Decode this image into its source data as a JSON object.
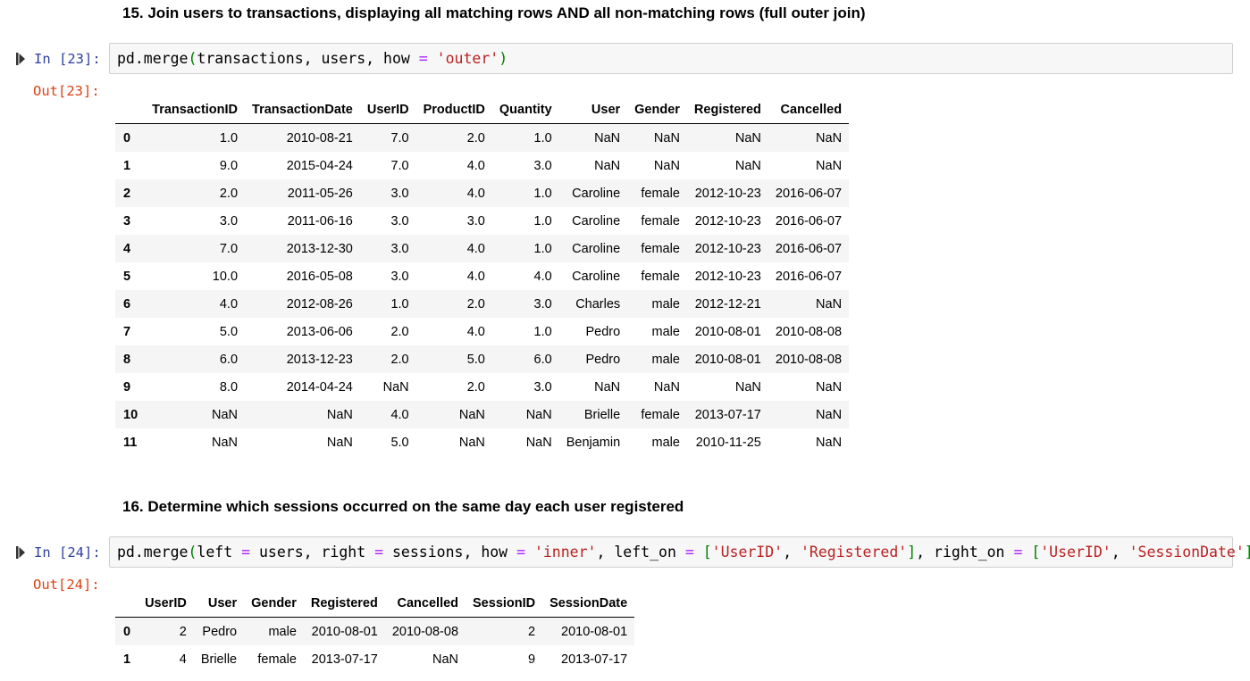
{
  "cells": [
    {
      "heading": "15. Join users to transactions, displaying all matching rows AND all non-matching rows (full outer join)",
      "in_prompt": "In [23]:",
      "out_prompt": "Out[23]:",
      "code": "pd.merge(transactions, users, how = 'outer')",
      "table": {
        "columns": [
          "",
          "TransactionID",
          "TransactionDate",
          "UserID",
          "ProductID",
          "Quantity",
          "User",
          "Gender",
          "Registered",
          "Cancelled"
        ],
        "rows": [
          [
            "0",
            "1.0",
            "2010-08-21",
            "7.0",
            "2.0",
            "1.0",
            "NaN",
            "NaN",
            "NaN",
            "NaN"
          ],
          [
            "1",
            "9.0",
            "2015-04-24",
            "7.0",
            "4.0",
            "3.0",
            "NaN",
            "NaN",
            "NaN",
            "NaN"
          ],
          [
            "2",
            "2.0",
            "2011-05-26",
            "3.0",
            "4.0",
            "1.0",
            "Caroline",
            "female",
            "2012-10-23",
            "2016-06-07"
          ],
          [
            "3",
            "3.0",
            "2011-06-16",
            "3.0",
            "3.0",
            "1.0",
            "Caroline",
            "female",
            "2012-10-23",
            "2016-06-07"
          ],
          [
            "4",
            "7.0",
            "2013-12-30",
            "3.0",
            "4.0",
            "1.0",
            "Caroline",
            "female",
            "2012-10-23",
            "2016-06-07"
          ],
          [
            "5",
            "10.0",
            "2016-05-08",
            "3.0",
            "4.0",
            "4.0",
            "Caroline",
            "female",
            "2012-10-23",
            "2016-06-07"
          ],
          [
            "6",
            "4.0",
            "2012-08-26",
            "1.0",
            "2.0",
            "3.0",
            "Charles",
            "male",
            "2012-12-21",
            "NaN"
          ],
          [
            "7",
            "5.0",
            "2013-06-06",
            "2.0",
            "4.0",
            "1.0",
            "Pedro",
            "male",
            "2010-08-01",
            "2010-08-08"
          ],
          [
            "8",
            "6.0",
            "2013-12-23",
            "2.0",
            "5.0",
            "6.0",
            "Pedro",
            "male",
            "2010-08-01",
            "2010-08-08"
          ],
          [
            "9",
            "8.0",
            "2014-04-24",
            "NaN",
            "2.0",
            "3.0",
            "NaN",
            "NaN",
            "NaN",
            "NaN"
          ],
          [
            "10",
            "NaN",
            "NaN",
            "4.0",
            "NaN",
            "NaN",
            "Brielle",
            "female",
            "2013-07-17",
            "NaN"
          ],
          [
            "11",
            "NaN",
            "NaN",
            "5.0",
            "NaN",
            "NaN",
            "Benjamin",
            "male",
            "2010-11-25",
            "NaN"
          ]
        ]
      }
    },
    {
      "heading": "16. Determine which sessions occurred on the same day each user registered",
      "in_prompt": "In [24]:",
      "out_prompt": "Out[24]:",
      "code": "pd.merge(left = users, right = sessions, how = 'inner', left_on = ['UserID', 'Registered'], right_on = ['UserID', 'SessionDate'])",
      "table": {
        "columns": [
          "",
          "UserID",
          "User",
          "Gender",
          "Registered",
          "Cancelled",
          "SessionID",
          "SessionDate"
        ],
        "rows": [
          [
            "0",
            "2",
            "Pedro",
            "male",
            "2010-08-01",
            "2010-08-08",
            "2",
            "2010-08-01"
          ],
          [
            "1",
            "4",
            "Brielle",
            "female",
            "2013-07-17",
            "NaN",
            "9",
            "2013-07-17"
          ]
        ]
      }
    }
  ],
  "colors": {
    "in_prompt": "#303f9f",
    "out_prompt": "#d84315",
    "code_bg": "#f7f7f7",
    "code_border": "#cfcfcf",
    "string": "#ba2121",
    "operator": "#aa22ff",
    "paren": "#008000"
  },
  "icons": {
    "run": "run-cell-icon"
  }
}
